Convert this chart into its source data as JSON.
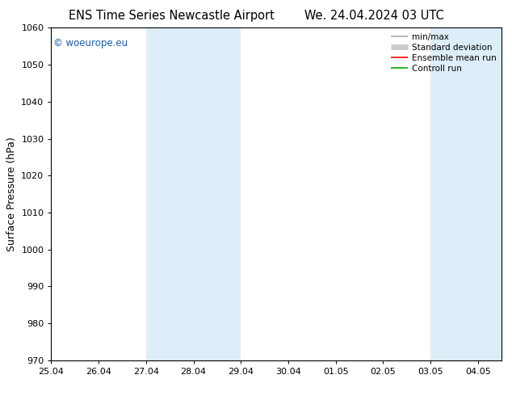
{
  "title_left": "ENS Time Series Newcastle Airport",
  "title_right": "We. 24.04.2024 03 UTC",
  "ylabel": "Surface Pressure (hPa)",
  "ylim": [
    970,
    1060
  ],
  "yticks": [
    970,
    980,
    990,
    1000,
    1010,
    1020,
    1030,
    1040,
    1050,
    1060
  ],
  "xtick_labels": [
    "25.04",
    "26.04",
    "27.04",
    "28.04",
    "29.04",
    "30.04",
    "01.05",
    "02.05",
    "03.05",
    "04.05"
  ],
  "xtick_positions": [
    0,
    1,
    2,
    3,
    4,
    5,
    6,
    7,
    8,
    9
  ],
  "xlim": [
    0,
    9.5
  ],
  "shaded_bands": [
    {
      "x_start": 2,
      "x_end": 4
    },
    {
      "x_start": 8,
      "x_end": 9.5
    }
  ],
  "shaded_color": "#ddeef8",
  "watermark": "© woeurope.eu",
  "watermark_color": "#1a5fa8",
  "legend_entries": [
    {
      "label": "min/max",
      "color": "#aaaaaa",
      "lw": 1.2
    },
    {
      "label": "Standard deviation",
      "color": "#cccccc",
      "lw": 5
    },
    {
      "label": "Ensemble mean run",
      "color": "#ff0000",
      "lw": 1.2
    },
    {
      "label": "Controll run",
      "color": "#00aa00",
      "lw": 1.2
    }
  ],
  "bg_color": "#ffffff",
  "title_fontsize": 10.5,
  "ylabel_fontsize": 9,
  "tick_fontsize": 8,
  "legend_fontsize": 7.5,
  "watermark_fontsize": 8.5
}
